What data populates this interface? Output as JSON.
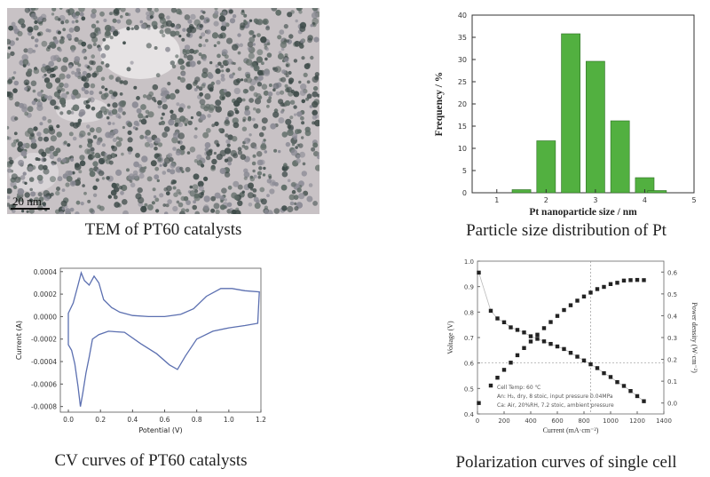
{
  "captions": {
    "tem": "TEM of PT60 catalysts",
    "psd": "Particle size distribution of Pt",
    "cv": "CV curves of PT60 catalysts",
    "pol": "Polarization curves of single cell"
  },
  "tem_image": {
    "scale_label": "20 nm"
  },
  "chart_data": [
    {
      "type": "bar",
      "xlabel": "Pt nanoparticle size / nm",
      "ylabel": "Frequency / %",
      "x": [
        1.5,
        2.0,
        2.5,
        3.0,
        3.5,
        4.0
      ],
      "values": [
        0.7,
        11.7,
        35.8,
        29.6,
        16.2,
        3.4
      ],
      "extra_bar": {
        "x": 4.25,
        "value": 0.5
      },
      "xlim": [
        0.5,
        5
      ],
      "ylim": [
        0,
        40
      ],
      "xticks": [
        "1",
        "2",
        "3",
        "4",
        "5"
      ],
      "yticks": [
        "0",
        "5",
        "10",
        "15",
        "20",
        "25",
        "30",
        "35",
        "40"
      ],
      "bar_color": "#52b040"
    },
    {
      "type": "line",
      "xlabel": "Potential (V)",
      "ylabel": "Current (A)",
      "xlim": [
        -0.05,
        1.2
      ],
      "ylim": [
        -0.00085,
        0.00043
      ],
      "xticks": [
        "0.0",
        "0.2",
        "0.4",
        "0.6",
        "0.8",
        "1.0",
        "1.2"
      ],
      "yticks": [
        "0.0004",
        "0.0002",
        "0.0000",
        "-0.0002",
        "-0.0004",
        "-0.0006",
        "-0.0008"
      ],
      "line_color": "#5b6fb0",
      "curve": [
        [
          0.0,
          3e-05
        ],
        [
          0.03,
          0.00012
        ],
        [
          0.06,
          0.00028
        ],
        [
          0.08,
          0.00039
        ],
        [
          0.1,
          0.00032
        ],
        [
          0.13,
          0.00028
        ],
        [
          0.16,
          0.00036
        ],
        [
          0.19,
          0.0003
        ],
        [
          0.22,
          0.00015
        ],
        [
          0.27,
          8e-05
        ],
        [
          0.32,
          4e-05
        ],
        [
          0.4,
          1e-05
        ],
        [
          0.5,
          0.0
        ],
        [
          0.6,
          0.0
        ],
        [
          0.7,
          2e-05
        ],
        [
          0.78,
          7e-05
        ],
        [
          0.86,
          0.00018
        ],
        [
          0.95,
          0.00025
        ],
        [
          1.02,
          0.00025
        ],
        [
          1.1,
          0.00023
        ],
        [
          1.19,
          0.00022
        ],
        [
          1.18,
          -6e-05
        ],
        [
          1.1,
          -8e-05
        ],
        [
          1.0,
          -0.0001
        ],
        [
          0.9,
          -0.00013
        ],
        [
          0.8,
          -0.0002
        ],
        [
          0.73,
          -0.00035
        ],
        [
          0.68,
          -0.00047
        ],
        [
          0.63,
          -0.00043
        ],
        [
          0.55,
          -0.00033
        ],
        [
          0.45,
          -0.00024
        ],
        [
          0.35,
          -0.00014
        ],
        [
          0.25,
          -0.00013
        ],
        [
          0.19,
          -0.00016
        ],
        [
          0.15,
          -0.0002
        ],
        [
          0.13,
          -0.00036
        ],
        [
          0.11,
          -0.0005
        ],
        [
          0.09,
          -0.00068
        ],
        [
          0.075,
          -0.0008
        ],
        [
          0.06,
          -0.00062
        ],
        [
          0.04,
          -0.00042
        ],
        [
          0.02,
          -0.0003
        ],
        [
          0.0,
          -0.00025
        ]
      ]
    },
    {
      "type": "scatter",
      "xlabel": "Current (mA·cm⁻²)",
      "ylabel": "Voltage (V)",
      "y2label": "Power density (W·cm⁻²)",
      "xlim": [
        0,
        1400
      ],
      "ylim": [
        0.4,
        1.0
      ],
      "y2lim": [
        -0.05,
        0.65
      ],
      "xticks": [
        "0",
        "200",
        "400",
        "600",
        "800",
        "1000",
        "1200",
        "1400"
      ],
      "yticks": [
        "0.4",
        "0.5",
        "0.6",
        "0.7",
        "0.8",
        "0.9",
        "1.0"
      ],
      "y2ticks": [
        "0.0",
        "0.1",
        "0.2",
        "0.3",
        "0.4",
        "0.5",
        "0.6"
      ],
      "annotations": [
        "Cell Temp: 60 ℃",
        "An: H₂, dry, 8 stoic, input pressure 0.04MPa",
        "Ca: Air, 20%RH, 7.2 stoic, ambient pressure"
      ],
      "series": [
        {
          "name": "",
          "x": [
            10,
            100,
            150,
            200,
            250,
            300,
            350,
            400,
            450,
            500,
            550,
            600,
            650,
            700,
            750,
            800,
            850,
            900,
            950,
            1000,
            1050,
            1100,
            1150,
            1200,
            1250
          ],
          "values": [
            0.955,
            0.805,
            0.775,
            0.76,
            0.74,
            0.73,
            0.72,
            0.705,
            0.695,
            0.685,
            0.675,
            0.665,
            0.655,
            0.64,
            0.625,
            0.61,
            0.595,
            0.58,
            0.56,
            0.545,
            0.525,
            0.51,
            0.49,
            0.47,
            0.45
          ]
        },
        {
          "name": "",
          "x": [
            10,
            100,
            150,
            200,
            250,
            300,
            350,
            400,
            450,
            500,
            550,
            600,
            650,
            700,
            750,
            800,
            850,
            900,
            950,
            1000,
            1050,
            1100,
            1150,
            1200,
            1250
          ],
          "values": [
            0.0,
            0.08,
            0.116,
            0.152,
            0.185,
            0.219,
            0.252,
            0.282,
            0.313,
            0.343,
            0.371,
            0.399,
            0.426,
            0.448,
            0.469,
            0.488,
            0.506,
            0.522,
            0.532,
            0.545,
            0.551,
            0.561,
            0.563,
            0.564,
            0.563
          ]
        }
      ]
    }
  ]
}
